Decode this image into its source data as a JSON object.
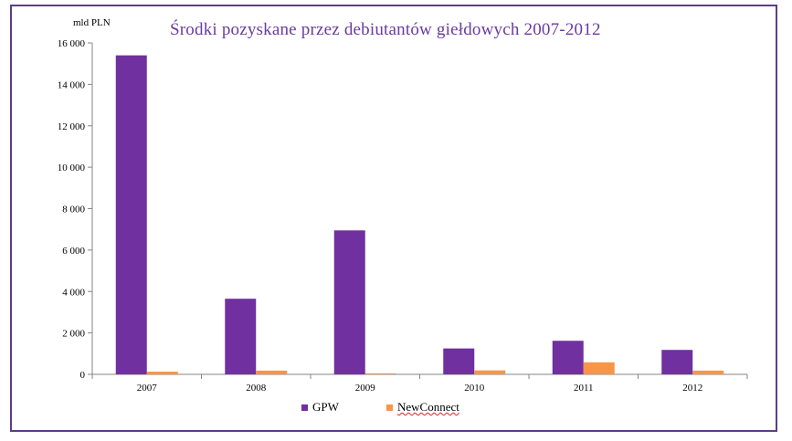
{
  "chart_data": {
    "type": "bar",
    "title": "Środki pozyskane przez debiutantów giełdowych 2007-2012",
    "ylabel": "mld PLN",
    "xlabel": "",
    "categories": [
      "2007",
      "2008",
      "2009",
      "2010",
      "2011",
      "2012"
    ],
    "ylim": [
      0,
      16000
    ],
    "yticks": [
      0,
      2000,
      4000,
      6000,
      8000,
      10000,
      12000,
      14000,
      16000
    ],
    "ytick_labels": [
      "0",
      "2 000",
      "4 000",
      "6 000",
      "8 000",
      "10 000",
      "12 000",
      "14 000",
      "16 000"
    ],
    "grid": false,
    "legend_position": "bottom",
    "series": [
      {
        "name": "GPW",
        "color": "#7030a0",
        "values": [
          15400,
          3650,
          6950,
          1250,
          1620,
          1180
        ]
      },
      {
        "name": "NewConnect",
        "color": "#f79646",
        "values": [
          130,
          180,
          50,
          190,
          580,
          180
        ]
      }
    ]
  }
}
